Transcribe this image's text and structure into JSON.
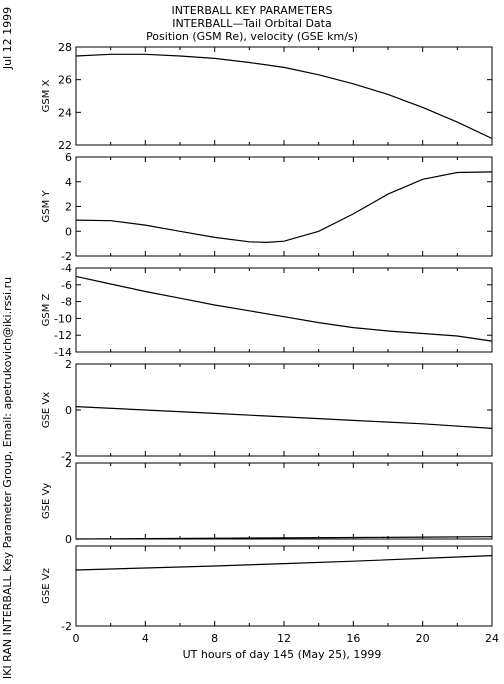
{
  "header": {
    "title_line1": "INTERBALL KEY PARAMETERS",
    "title_line2": "INTERBALL—Tail Orbital Data",
    "title_line3": "Position (GSM Re), velocity (GSE km/s)"
  },
  "side": {
    "date": "Jul 12 1999",
    "credit": "IKI RAN INTERBALL Key Parameter Group, Email: apetrukovich@iki.rssi.ru"
  },
  "chart_data": {
    "type": "line",
    "title": "Position (GSM Re), velocity (GSE km/s)",
    "xlabel": "UT hours of day 145 (May 25), 1999",
    "xlim": [
      0,
      24
    ],
    "xticks": [
      0,
      4,
      8,
      12,
      16,
      20,
      24
    ],
    "panels": [
      {
        "ylabel": "GSM X",
        "ylim": [
          22,
          28
        ],
        "yticks": [
          22,
          24,
          26,
          28
        ],
        "x": [
          0,
          2,
          4,
          6,
          8,
          10,
          12,
          14,
          16,
          18,
          20,
          22,
          24
        ],
        "y": [
          27.45,
          27.55,
          27.55,
          27.45,
          27.3,
          27.05,
          26.75,
          26.3,
          25.75,
          25.1,
          24.3,
          23.4,
          22.4
        ]
      },
      {
        "ylabel": "GSM Y",
        "ylim": [
          -2,
          6
        ],
        "yticks": [
          -2,
          0,
          2,
          4,
          6
        ],
        "x": [
          0,
          2,
          4,
          6,
          8,
          10,
          11,
          12,
          14,
          16,
          18,
          20,
          22,
          24
        ],
        "y": [
          0.9,
          0.85,
          0.5,
          0.0,
          -0.5,
          -0.85,
          -0.9,
          -0.8,
          0.0,
          1.4,
          3.0,
          4.2,
          4.75,
          4.8
        ]
      },
      {
        "ylabel": "GSM Z",
        "ylim": [
          -14,
          -4
        ],
        "yticks": [
          -14,
          -12,
          -10,
          -8,
          -6,
          -4
        ],
        "x": [
          0,
          2,
          4,
          6,
          8,
          10,
          12,
          14,
          16,
          18,
          20,
          22,
          24
        ],
        "y": [
          -5.0,
          -5.9,
          -6.8,
          -7.6,
          -8.4,
          -9.1,
          -9.8,
          -10.5,
          -11.1,
          -11.5,
          -11.8,
          -12.1,
          -12.7
        ]
      },
      {
        "ylabel": "GSE Vx",
        "ylim": [
          -2,
          2
        ],
        "yticks": [
          -2,
          0,
          2
        ],
        "x": [
          0,
          4,
          8,
          12,
          16,
          20,
          24
        ],
        "y": [
          0.15,
          0.0,
          -0.15,
          -0.3,
          -0.45,
          -0.6,
          -0.8
        ]
      },
      {
        "ylabel": "GSE Vy",
        "ylim": [
          0,
          2
        ],
        "yticks": [
          0,
          2
        ],
        "x": [
          0,
          4,
          8,
          12,
          16,
          20,
          24
        ],
        "y": [
          0.0,
          0.01,
          0.02,
          0.03,
          0.04,
          0.05,
          0.06
        ]
      },
      {
        "ylabel": "GSE Vz",
        "ylim": [
          -2,
          0
        ],
        "yticks": [
          -2
        ],
        "x": [
          0,
          4,
          8,
          12,
          16,
          20,
          24
        ],
        "y": [
          -0.6,
          -0.55,
          -0.5,
          -0.44,
          -0.38,
          -0.31,
          -0.24
        ]
      }
    ]
  }
}
